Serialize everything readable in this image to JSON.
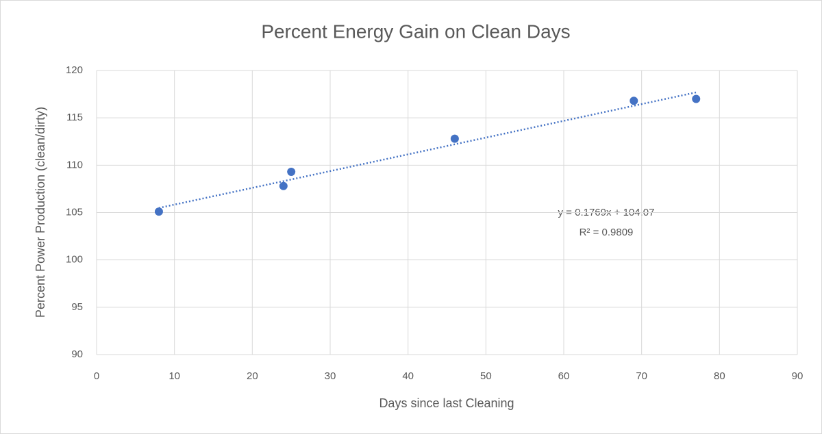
{
  "chart_data": {
    "type": "scatter",
    "title": "Percent Energy Gain on Clean Days",
    "x_label": "Days since last Cleaning",
    "y_label": "Percent Power Production (clean/dirty)",
    "series": [
      {
        "name": "Percent Power Production",
        "color": "#4472c4",
        "x": [
          8,
          24,
          25,
          46,
          69,
          77
        ],
        "values": [
          105.1,
          107.8,
          109.3,
          112.8,
          116.8,
          117.0
        ]
      }
    ],
    "trendline": {
      "slope": 0.1769,
      "intercept": 104.07,
      "equation": "y = 0.1769x + 104.07",
      "r_squared": "R² = 0.9809"
    },
    "xlim": [
      0,
      90
    ],
    "xticks": [
      0,
      10,
      20,
      30,
      40,
      50,
      60,
      70,
      80,
      90
    ],
    "ylim": [
      90,
      120
    ],
    "yticks": [
      90,
      95,
      100,
      105,
      110,
      115,
      120
    ],
    "grid": true
  }
}
